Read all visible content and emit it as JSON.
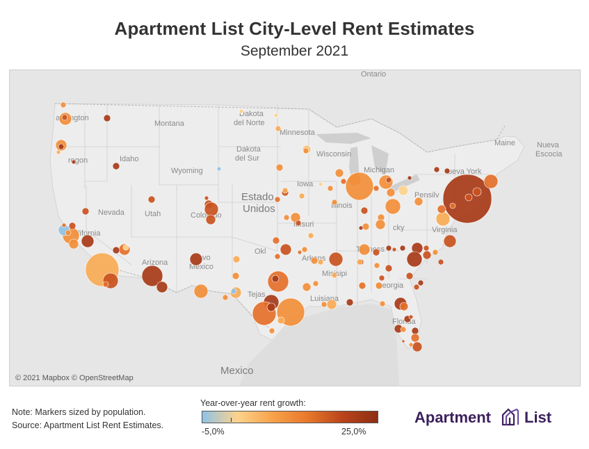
{
  "title": "Apartment List City-Level Rent Estimates",
  "subtitle": "September 2021",
  "map": {
    "copyright": "© 2021 Mapbox © OpenStreetMap",
    "labels": {
      "ontario": "Ontario",
      "washington": "ashington",
      "montana": "Montana",
      "dakota_norte": [
        "Dakota",
        "del Norte"
      ],
      "minnesota": "Minnesota",
      "oregon": "regon",
      "idaho": "Idaho",
      "dakota_sur": [
        "Dakota",
        "del Sur"
      ],
      "wisconsin": "Wisconsin",
      "maine": "Maine",
      "nueva_escocia": [
        "Nueva",
        "Escocia"
      ],
      "wyoming": "Wyoming",
      "michigan": "Michigan",
      "nueva_york": "ueva York",
      "iowa": "Iowa",
      "estados_unidos": [
        "Estado",
        "Unidos"
      ],
      "pennsylvania": "Pensilv",
      "nevada": "Nevada",
      "utah": "Utah",
      "colorado": "Colorado",
      "illinois": "Illinois",
      "california": "alifornia",
      "misuri": "Misuri",
      "kentucky": "cky",
      "virginia": "Virginia",
      "oklahoma": "Okl",
      "tennessee": "Tenness",
      "arizona": "Arizona",
      "nuevo_mexico": [
        "vo",
        "México"
      ],
      "arkansas": "Arkans",
      "misisipi": "Misisipi",
      "georgia": "Georgia",
      "tejas": "Tejas",
      "luisiana": "Luisiana",
      "florida": "Florida",
      "mexico": "Mexico"
    }
  },
  "legend": {
    "title": "Year-over-year rent growth:",
    "min_label": "-5,0%",
    "max_label": "25,0%",
    "min_value": -5.0,
    "max_value": 25.0,
    "colors": [
      "#8fc3e6",
      "#fdd28c",
      "#f7a24a",
      "#e8782b",
      "#b9441b",
      "#8e2e14"
    ]
  },
  "notes": {
    "line1": "Note: Markers sized by population.",
    "line2": "Source: Apartment List Rent Estimates."
  },
  "logo": {
    "text_left": "Apartment",
    "text_right": "List",
    "icon": "apartment-list-logo-icon"
  }
}
